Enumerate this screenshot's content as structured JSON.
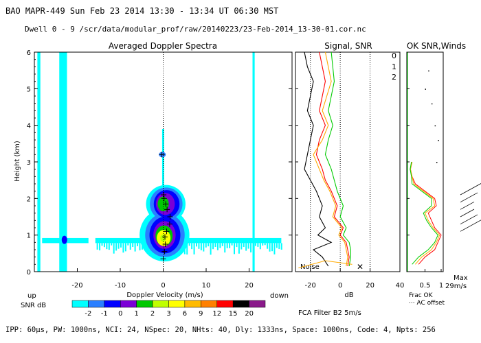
{
  "header": {
    "line1": "BAO  MAPR-449  Sun Feb 23 2014 13:30 - 13:34 UT 06:30 MST",
    "line2": "Dwell  0 - 9   /scr/data/modular_prof/raw/20140223/23-Feb-2014_13-30-01.cor.nc"
  },
  "footer": {
    "params": "IPP:  60μs,  PW: 1000ns,  NCI:  24,  NSpec: 20, NHts: 40,  Dly: 1333ns,  Space: 1000ns,  Code: 4,  Npts: 256"
  },
  "colors": {
    "scale": [
      "#00ffff",
      "#2a7fff",
      "#0000ff",
      "#7b00d6",
      "#00c800",
      "#bfff00",
      "#ffff00",
      "#ffbb00",
      "#ff8000",
      "#ff0000",
      "#000000",
      "#8a1a8a"
    ],
    "noise_line": "#000000",
    "snr0": "#ff0000",
    "snr1": "#ffaa00",
    "snr2": "#00cc00",
    "wind_barb": "#000000"
  },
  "chart_data": [
    {
      "type": "heatmap",
      "name": "doppler",
      "title": "Averaged Doppler Spectra",
      "xlabel": "Doppler Velocity (m/s)",
      "ylabel": "Height (km)",
      "xlim": [
        -30,
        30
      ],
      "ylim": [
        0,
        6
      ],
      "xticks": [
        -20,
        -10,
        0,
        10,
        20
      ],
      "yticks": [
        0,
        1,
        2,
        3,
        4,
        5,
        6
      ],
      "xlabel_left": "up",
      "xlabel_right": "down",
      "colorbar": {
        "label": "SNR dB",
        "ticks": [
          "-2",
          "-1",
          "0",
          "1",
          "2",
          "3",
          "6",
          "9",
          "12",
          "15",
          "20"
        ]
      },
      "peaks": [
        {
          "v": 0.0,
          "h": 0.35
        },
        {
          "v": 0.3,
          "h": 0.55
        },
        {
          "v": 0.5,
          "h": 0.75
        },
        {
          "v": 0.4,
          "h": 0.95
        },
        {
          "v": 0.8,
          "h": 1.1
        },
        {
          "v": 1.5,
          "h": 1.3
        },
        {
          "v": 1.6,
          "h": 1.5
        },
        {
          "v": 0.9,
          "h": 1.7
        },
        {
          "v": 0.6,
          "h": 1.85
        },
        {
          "v": 0.2,
          "h": 2.0
        },
        {
          "v": 0.1,
          "h": 2.1
        },
        {
          "v": -0.3,
          "h": 3.2
        }
      ]
    },
    {
      "type": "line",
      "name": "signal",
      "title": "Signal, SNR",
      "xlabel": "dB",
      "xlim": [
        -30,
        40
      ],
      "ylim": [
        0,
        6
      ],
      "xticks": [
        -20,
        0,
        20,
        40
      ],
      "noise_label": "Noise",
      "series_labels": [
        "0",
        "1",
        "2"
      ],
      "footnote": "FCA Filter B2   5m/s",
      "series": [
        {
          "name": "signal",
          "h": [
            0.15,
            0.4,
            0.6,
            0.8,
            1.0,
            1.2,
            1.5,
            1.8,
            2.2,
            2.5,
            2.8,
            3.2,
            3.6,
            4.0,
            4.4,
            4.8,
            5.2,
            5.6,
            6.0
          ],
          "v": [
            -8,
            -12,
            -18,
            -6,
            -15,
            -10,
            -14,
            -12,
            -16,
            -20,
            -24,
            -22,
            -20,
            -18,
            -22,
            -20,
            -18,
            -22,
            -24
          ]
        },
        {
          "name": "0",
          "h": [
            0.15,
            0.4,
            0.6,
            0.8,
            1.0,
            1.2,
            1.5,
            1.8,
            2.2,
            2.5,
            2.8,
            3.2,
            3.6,
            4.0,
            4.4,
            4.8,
            5.2,
            5.6,
            6.0
          ],
          "v": [
            5,
            6,
            5,
            4,
            0,
            2,
            -4,
            -2,
            -6,
            -10,
            -12,
            -16,
            -14,
            -10,
            -14,
            -12,
            -10,
            -12,
            -14
          ]
        },
        {
          "name": "1",
          "h": [
            0.15,
            0.4,
            0.6,
            0.8,
            1.0,
            1.2,
            1.5,
            1.8,
            2.2,
            2.5,
            2.8,
            3.2,
            3.6,
            4.0,
            4.4,
            4.8,
            5.2,
            5.6,
            6.0
          ],
          "v": [
            4,
            5,
            4,
            3,
            -1,
            1,
            -5,
            -3,
            -7,
            -11,
            -14,
            -18,
            -12,
            -8,
            -12,
            -9,
            -6,
            -8,
            -10
          ]
        },
        {
          "name": "2",
          "h": [
            0.15,
            0.4,
            0.6,
            0.8,
            1.0,
            1.2,
            1.5,
            1.8,
            2.2,
            2.5,
            2.8,
            3.2,
            3.6,
            4.0,
            4.4,
            4.8,
            5.2,
            5.6,
            6.0
          ],
          "v": [
            6,
            7,
            7,
            6,
            2,
            4,
            0,
            2,
            -2,
            -4,
            -6,
            -10,
            -8,
            -5,
            -8,
            -6,
            -4,
            -5,
            -6
          ]
        }
      ]
    },
    {
      "type": "scatter",
      "name": "winds",
      "title": "OK SNR,Winds",
      "xticks": [
        "0.5",
        "1"
      ],
      "xlabel": "Frac OK",
      "offset_label": "··· AC offset",
      "max_label_1": "Max",
      "max_label_2": "29m/s",
      "frac_ok": [
        {
          "name": "0",
          "h": [
            0.2,
            0.4,
            0.6,
            0.8,
            1.0,
            1.2,
            1.4,
            1.6,
            1.8,
            2.0,
            2.2,
            2.4,
            2.6,
            2.8,
            3.0
          ],
          "v": [
            0.3,
            0.5,
            0.8,
            0.9,
            1.0,
            0.8,
            0.7,
            0.6,
            0.85,
            0.8,
            0.5,
            0.2,
            0.1,
            0.05,
            0.1
          ]
        },
        {
          "name": "1",
          "h": [
            0.2,
            0.4,
            0.6,
            0.8,
            1.0,
            1.2,
            1.4,
            1.6,
            1.8,
            2.0,
            2.2,
            2.4,
            2.6,
            2.8,
            3.0
          ],
          "v": [
            0.2,
            0.4,
            0.7,
            0.85,
            0.95,
            0.75,
            0.6,
            0.5,
            0.8,
            0.75,
            0.45,
            0.15,
            0.1,
            0.05,
            0.1
          ]
        },
        {
          "name": "2",
          "h": [
            0.2,
            0.4,
            0.6,
            0.8,
            1.0,
            1.2,
            1.4,
            1.6,
            1.8,
            2.0,
            2.2,
            2.4,
            2.6,
            2.8,
            3.0
          ],
          "v": [
            0.1,
            0.3,
            0.6,
            0.8,
            0.9,
            0.7,
            0.55,
            0.45,
            0.7,
            0.7,
            0.4,
            0.1,
            0.08,
            0.04,
            0.08
          ]
        }
      ]
    }
  ]
}
